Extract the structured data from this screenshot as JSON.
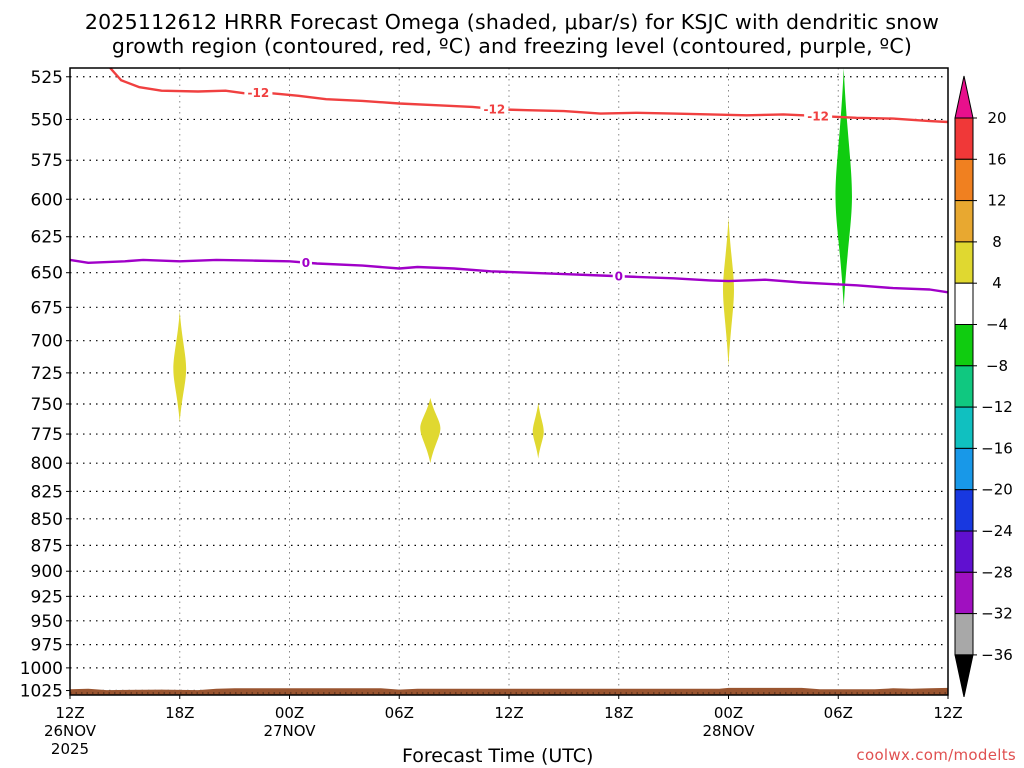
{
  "title": {
    "line1": "2025112612 HRRR Forecast Omega (shaded, μbar/s) for KSJC with dendritic snow",
    "line2": "growth region (contoured, red, ºC) and freezing level (contoured, purple, ºC)"
  },
  "xlabel": "Forecast Time (UTC)",
  "credit": "coolwx.com/modelts",
  "chart_data": {
    "type": "heatmap",
    "title": "2025112612 HRRR Forecast Omega (shaded, μbar/s) for KSJC with dendritic snow growth region (contoured, red, ºC) and freezing level (contoured, purple, ºC)",
    "xlabel": "Forecast Time (UTC)",
    "ylabel": "",
    "x_range_hours": [
      0,
      48
    ],
    "x_ticks": [
      {
        "h": 0,
        "label": "12Z",
        "sub": [
          "26NOV",
          "2025"
        ]
      },
      {
        "h": 6,
        "label": "18Z",
        "sub": []
      },
      {
        "h": 12,
        "label": "00Z",
        "sub": [
          "27NOV"
        ]
      },
      {
        "h": 18,
        "label": "06Z",
        "sub": []
      },
      {
        "h": 24,
        "label": "12Z",
        "sub": []
      },
      {
        "h": 30,
        "label": "18Z",
        "sub": []
      },
      {
        "h": 36,
        "label": "00Z",
        "sub": [
          "28NOV"
        ]
      },
      {
        "h": 42,
        "label": "06Z",
        "sub": []
      },
      {
        "h": 48,
        "label": "12Z",
        "sub": []
      }
    ],
    "y_ticks": [
      525,
      550,
      575,
      600,
      625,
      650,
      675,
      700,
      725,
      750,
      775,
      800,
      825,
      850,
      875,
      900,
      925,
      950,
      975,
      1000,
      1025
    ],
    "y_range_hPa": [
      520,
      1030
    ],
    "y_scale": "log-pressure",
    "grid": true,
    "contours": [
      {
        "name": "-12",
        "color": "#f04040",
        "label": "-12",
        "label_at_h": [
          10.3,
          23.2,
          40.9
        ],
        "points": [
          [
            2.2,
            520
          ],
          [
            2.8,
            527
          ],
          [
            3.8,
            531
          ],
          [
            5.0,
            533
          ],
          [
            7.0,
            533.5
          ],
          [
            8.5,
            533
          ],
          [
            9.5,
            534.5
          ],
          [
            10.5,
            534
          ],
          [
            11.5,
            535
          ],
          [
            12.5,
            536
          ],
          [
            14.0,
            538
          ],
          [
            16.0,
            539
          ],
          [
            18.0,
            540.5
          ],
          [
            20.0,
            541.5
          ],
          [
            22.0,
            542.5
          ],
          [
            23.5,
            544
          ],
          [
            25.0,
            544.5
          ],
          [
            27.0,
            545
          ],
          [
            29.0,
            546.5
          ],
          [
            31.0,
            546
          ],
          [
            33.0,
            546.5
          ],
          [
            35.0,
            547
          ],
          [
            37.0,
            547.5
          ],
          [
            39.0,
            547
          ],
          [
            41.0,
            548
          ],
          [
            43.0,
            549
          ],
          [
            45.0,
            549.5
          ],
          [
            47.0,
            551
          ],
          [
            48.0,
            551.5
          ]
        ]
      },
      {
        "name": "0",
        "color": "#a000c8",
        "label": "0",
        "label_at_h": [
          12.9,
          30.0
        ],
        "points": [
          [
            0.0,
            641
          ],
          [
            1.0,
            643
          ],
          [
            3.0,
            642
          ],
          [
            4.0,
            641
          ],
          [
            6.0,
            642
          ],
          [
            8.0,
            641
          ],
          [
            10.0,
            641.5
          ],
          [
            12.0,
            642
          ],
          [
            13.5,
            643.5
          ],
          [
            16.0,
            645
          ],
          [
            18.0,
            647
          ],
          [
            19.0,
            646
          ],
          [
            21.0,
            647
          ],
          [
            23.0,
            649
          ],
          [
            25.0,
            650
          ],
          [
            27.0,
            651
          ],
          [
            29.0,
            652
          ],
          [
            31.0,
            653
          ],
          [
            33.0,
            654
          ],
          [
            35.0,
            655.5
          ],
          [
            36.0,
            656
          ],
          [
            38.0,
            655
          ],
          [
            40.0,
            657
          ],
          [
            41.5,
            658
          ],
          [
            43.0,
            659
          ],
          [
            45.0,
            661
          ],
          [
            47.0,
            662
          ],
          [
            48.0,
            664
          ]
        ]
      }
    ],
    "shaded_regions": [
      {
        "bin": "4 to 8",
        "color": "#e0d830",
        "center_h": 6.0,
        "p_top": 678,
        "p_bottom": 765,
        "p_widest": 722,
        "half_width_h": 0.35
      },
      {
        "bin": "4 to 8",
        "color": "#e0d830",
        "center_h": 19.7,
        "p_top": 745,
        "p_bottom": 800,
        "p_widest": 770,
        "half_width_h": 0.55
      },
      {
        "bin": "4 to 8",
        "color": "#e0d830",
        "center_h": 25.6,
        "p_top": 749,
        "p_bottom": 796,
        "p_widest": 773,
        "half_width_h": 0.3
      },
      {
        "bin": "4 to 8",
        "color": "#e0d830",
        "center_h": 36.0,
        "p_top": 612,
        "p_bottom": 720,
        "p_widest": 662,
        "half_width_h": 0.3
      },
      {
        "bin": "-8 to -4",
        "color": "#10cc10",
        "center_h": 42.3,
        "p_top": 520,
        "p_bottom": 675,
        "p_widest": 598,
        "half_width_h": 0.45
      }
    ],
    "surface_fill": {
      "color": "#9a5530",
      "description": "terrain below surface pressure"
    },
    "colorbar": {
      "ticks": [
        20,
        16,
        12,
        8,
        4,
        -4,
        -8,
        -12,
        -16,
        -20,
        -24,
        -28,
        -32,
        -36
      ],
      "bins": [
        {
          "from": 20,
          "to": 24,
          "color": "#e8108c"
        },
        {
          "from": 16,
          "to": 20,
          "color": "#f03838"
        },
        {
          "from": 12,
          "to": 16,
          "color": "#f08020"
        },
        {
          "from": 8,
          "to": 12,
          "color": "#e8a830"
        },
        {
          "from": 4,
          "to": 8,
          "color": "#e0d830"
        },
        {
          "from": -4,
          "to": 4,
          "color": "#ffffff"
        },
        {
          "from": -8,
          "to": -4,
          "color": "#10cc10"
        },
        {
          "from": -12,
          "to": -8,
          "color": "#10c880"
        },
        {
          "from": -16,
          "to": -12,
          "color": "#10c0c0"
        },
        {
          "from": -20,
          "to": -16,
          "color": "#1898e8"
        },
        {
          "from": -24,
          "to": -20,
          "color": "#1838e0"
        },
        {
          "from": -28,
          "to": -24,
          "color": "#6010d0"
        },
        {
          "from": -32,
          "to": -28,
          "color": "#a010c0"
        },
        {
          "from": -36,
          "to": -32,
          "color": "#a8a8a8"
        },
        {
          "from": -40,
          "to": -36,
          "color": "#000000"
        }
      ]
    }
  }
}
